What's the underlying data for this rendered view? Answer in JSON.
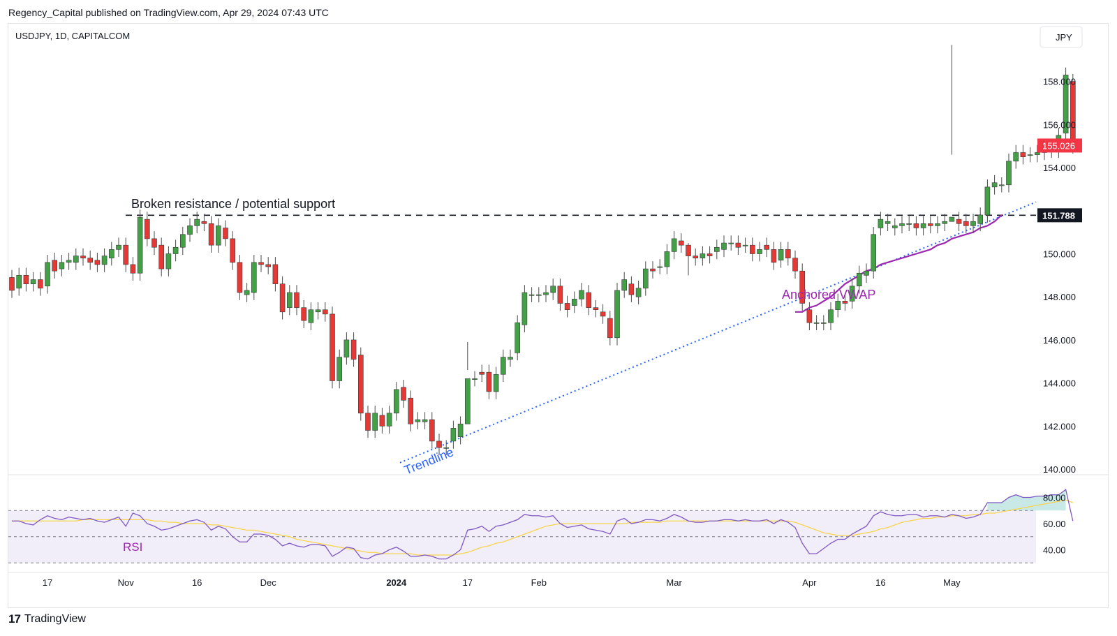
{
  "header": {
    "text": "Regency_Capital published on TradingView.com, Apr 29, 2024 07:43 UTC"
  },
  "footer": {
    "brand": "TradingView"
  },
  "chart_data": {
    "type": "candlestick",
    "symbol_label": "USDJPY, 1D, CAPITALCOM",
    "currency": "JPY",
    "price_axis": {
      "range": [
        140,
        159.5
      ],
      "ticks": [
        "158.000",
        "156.000",
        "154.000",
        "152.000",
        "150.000",
        "148.000",
        "146.000",
        "144.000",
        "142.000",
        "140.000"
      ]
    },
    "time_axis": {
      "labels": [
        {
          "idx": 5,
          "text": "17"
        },
        {
          "idx": 16,
          "text": "Nov"
        },
        {
          "idx": 26,
          "text": "16"
        },
        {
          "idx": 36,
          "text": "Dec"
        },
        {
          "idx": 54,
          "text": "2024"
        },
        {
          "idx": 64,
          "text": "17"
        },
        {
          "idx": 74,
          "text": "Feb"
        },
        {
          "idx": 93,
          "text": "Mar"
        },
        {
          "idx": 112,
          "text": "Apr"
        },
        {
          "idx": 122,
          "text": "16"
        },
        {
          "idx": 132,
          "text": "May"
        }
      ]
    },
    "last_price": {
      "label": "155.026",
      "value": 155.026,
      "color": "#f23645"
    },
    "level_line": {
      "label": "151.788",
      "value": 151.788
    },
    "annotations": {
      "resistance": "Broken resistance / potential support",
      "trendline": "Trendline",
      "vwap": "Anchored VWAP",
      "rsi": "RSI"
    },
    "colors": {
      "up": "#43a047",
      "down": "#e53935",
      "vwap": "#9c27b0",
      "trendline": "#2962ff",
      "rsi": "#7e57c2",
      "rsi_ma": "#f7d44c"
    },
    "candles": [
      [
        148.9,
        148.3
      ],
      [
        148.4,
        149.0
      ],
      [
        149.0,
        148.6
      ],
      [
        148.6,
        148.8
      ],
      [
        148.8,
        148.4
      ],
      [
        148.5,
        149.6
      ],
      [
        149.7,
        149.2
      ],
      [
        149.3,
        149.6
      ],
      [
        149.6,
        149.7
      ],
      [
        149.6,
        149.9
      ],
      [
        149.9,
        149.8
      ],
      [
        149.8,
        149.6
      ],
      [
        149.7,
        149.5
      ],
      [
        149.5,
        149.9
      ],
      [
        149.8,
        150.2
      ],
      [
        150.2,
        150.4
      ],
      [
        150.4,
        149.5
      ],
      [
        149.5,
        149.1
      ],
      [
        149.1,
        151.7
      ],
      [
        151.6,
        150.7
      ],
      [
        150.7,
        150.3
      ],
      [
        150.4,
        149.3
      ],
      [
        149.3,
        150.0
      ],
      [
        150.0,
        150.3
      ],
      [
        150.3,
        150.9
      ],
      [
        150.9,
        151.3
      ],
      [
        151.3,
        151.6
      ],
      [
        151.5,
        151.4
      ],
      [
        151.4,
        150.4
      ],
      [
        150.4,
        151.3
      ],
      [
        151.2,
        150.7
      ],
      [
        150.7,
        149.6
      ],
      [
        149.6,
        148.2
      ],
      [
        148.1,
        148.3
      ],
      [
        148.2,
        149.6
      ],
      [
        149.6,
        149.5
      ],
      [
        149.5,
        149.4
      ],
      [
        149.5,
        148.6
      ],
      [
        148.6,
        147.3
      ],
      [
        147.5,
        148.2
      ],
      [
        148.2,
        147.5
      ],
      [
        147.5,
        146.9
      ],
      [
        146.8,
        147.4
      ],
      [
        147.3,
        147.4
      ],
      [
        147.4,
        147.2
      ],
      [
        147.2,
        144.1
      ],
      [
        144.1,
        145.2
      ],
      [
        145.2,
        146.0
      ],
      [
        146.0,
        145.1
      ],
      [
        145.3,
        142.6
      ],
      [
        142.6,
        141.8
      ],
      [
        141.8,
        142.6
      ],
      [
        142.5,
        142.0
      ],
      [
        142.0,
        142.6
      ],
      [
        142.6,
        143.7
      ],
      [
        143.8,
        143.2
      ],
      [
        143.3,
        142.1
      ],
      [
        142.2,
        142.3
      ],
      [
        142.2,
        142.3
      ],
      [
        142.3,
        141.3
      ],
      [
        141.3,
        141.0
      ],
      [
        141.0,
        141.0
      ],
      [
        141.3,
        141.9
      ],
      [
        141.5,
        142.1
      ],
      [
        142.1,
        144.2
      ],
      [
        144.2,
        144.2
      ],
      [
        144.5,
        144.4
      ],
      [
        144.5,
        143.6
      ],
      [
        143.6,
        144.4
      ],
      [
        144.4,
        145.2
      ],
      [
        145.1,
        145.2
      ],
      [
        145.4,
        146.8
      ],
      [
        146.7,
        148.2
      ],
      [
        148.1,
        148.1
      ],
      [
        148.1,
        148.1
      ],
      [
        148.1,
        148.2
      ],
      [
        148.2,
        148.5
      ],
      [
        148.5,
        147.7
      ],
      [
        147.7,
        147.4
      ],
      [
        147.6,
        147.9
      ],
      [
        147.9,
        148.3
      ],
      [
        148.2,
        147.5
      ],
      [
        147.5,
        147.4
      ],
      [
        147.3,
        147.1
      ],
      [
        147.0,
        146.1
      ],
      [
        146.1,
        148.3
      ],
      [
        148.3,
        148.8
      ],
      [
        148.6,
        148.1
      ],
      [
        148.0,
        148.4
      ],
      [
        148.4,
        149.3
      ],
      [
        149.3,
        149.2
      ],
      [
        149.4,
        149.4
      ],
      [
        149.4,
        150.1
      ],
      [
        150.1,
        150.7
      ],
      [
        150.6,
        150.4
      ],
      [
        150.4,
        149.9
      ],
      [
        149.9,
        149.8
      ],
      [
        149.8,
        150.0
      ],
      [
        150.0,
        149.9
      ],
      [
        150.1,
        150.3
      ],
      [
        150.2,
        150.5
      ],
      [
        150.5,
        150.5
      ],
      [
        150.5,
        150.3
      ],
      [
        150.4,
        150.4
      ],
      [
        150.4,
        150.0
      ],
      [
        150.0,
        150.2
      ],
      [
        150.4,
        150.2
      ],
      [
        150.2,
        149.6
      ],
      [
        149.7,
        150.2
      ],
      [
        150.2,
        149.8
      ],
      [
        149.8,
        149.2
      ],
      [
        149.2,
        147.7
      ],
      [
        147.4,
        146.8
      ],
      [
        146.8,
        146.8
      ],
      [
        146.8,
        146.8
      ],
      [
        146.8,
        147.4
      ],
      [
        147.4,
        147.8
      ],
      [
        147.8,
        147.7
      ],
      [
        147.8,
        148.5
      ],
      [
        148.5,
        149.1
      ],
      [
        149.0,
        149.2
      ],
      [
        149.2,
        150.9
      ],
      [
        151.2,
        151.6
      ],
      [
        151.4,
        151.5
      ],
      [
        151.2,
        151.3
      ],
      [
        151.3,
        151.4
      ],
      [
        151.4,
        151.4
      ],
      [
        151.4,
        151.2
      ],
      [
        151.2,
        151.4
      ],
      [
        151.4,
        151.3
      ],
      [
        151.3,
        151.4
      ],
      [
        151.4,
        151.5
      ],
      [
        151.5,
        151.7
      ],
      [
        151.6,
        151.4
      ],
      [
        151.5,
        151.3
      ],
      [
        151.3,
        151.5
      ],
      [
        151.4,
        151.8
      ],
      [
        151.8,
        153.1
      ],
      [
        153.1,
        153.3
      ],
      [
        153.2,
        153.2
      ],
      [
        153.2,
        154.3
      ],
      [
        154.3,
        154.7
      ],
      [
        154.7,
        154.5
      ],
      [
        154.6,
        154.6
      ],
      [
        154.6,
        154.7
      ],
      [
        154.7,
        154.8
      ],
      [
        154.8,
        154.9
      ],
      [
        154.8,
        155.5
      ],
      [
        155.6,
        158.3
      ],
      [
        158.0,
        155.0
      ]
    ],
    "wicks": [
      [
        64,
        144.6,
        145.9
      ],
      [
        95,
        149.0,
        150.5
      ],
      [
        132,
        154.6,
        159.7
      ]
    ],
    "vwap": [
      [
        110,
        147.3
      ],
      [
        111,
        147.3
      ],
      [
        112,
        147.5
      ],
      [
        113,
        147.6
      ],
      [
        114,
        147.8
      ],
      [
        115,
        148.0
      ],
      [
        116,
        148.3
      ],
      [
        117,
        148.6
      ],
      [
        118,
        148.8
      ],
      [
        119,
        149.0
      ],
      [
        120,
        149.2
      ],
      [
        121,
        149.3
      ],
      [
        122,
        149.5
      ],
      [
        123,
        149.6
      ],
      [
        124,
        149.7
      ],
      [
        125,
        149.8
      ],
      [
        126,
        149.9
      ],
      [
        127,
        150.0
      ],
      [
        128,
        150.1
      ],
      [
        129,
        150.2
      ],
      [
        130,
        150.4
      ],
      [
        131,
        150.5
      ],
      [
        132,
        150.7
      ],
      [
        133,
        150.8
      ],
      [
        134,
        150.9
      ],
      [
        135,
        151.0
      ],
      [
        136,
        151.2
      ],
      [
        137,
        151.3
      ],
      [
        138,
        151.5
      ],
      [
        139,
        151.8
      ]
    ],
    "rsi_panel": {
      "ticks": [
        "80.00",
        "60.00",
        "40.00"
      ],
      "range": [
        28,
        92
      ],
      "band": [
        30,
        70
      ],
      "rsi": [
        62,
        62,
        60,
        59,
        63,
        66,
        64,
        63,
        65,
        64,
        63,
        64,
        62,
        61,
        63,
        65,
        58,
        68,
        66,
        60,
        58,
        55,
        56,
        58,
        60,
        62,
        63,
        61,
        55,
        58,
        56,
        50,
        46,
        46,
        52,
        52,
        51,
        48,
        43,
        45,
        43,
        42,
        44,
        44,
        43,
        35,
        38,
        42,
        41,
        34,
        33,
        36,
        37,
        40,
        42,
        39,
        35,
        35,
        36,
        35,
        33,
        33,
        36,
        40,
        55,
        56,
        58,
        54,
        58,
        59,
        61,
        63,
        67,
        66,
        66,
        65,
        66,
        60,
        57,
        58,
        59,
        56,
        55,
        54,
        52,
        62,
        64,
        60,
        61,
        63,
        63,
        62,
        64,
        67,
        65,
        62,
        61,
        61,
        62,
        62,
        63,
        63,
        62,
        63,
        62,
        62,
        63,
        60,
        63,
        61,
        57,
        45,
        37,
        37,
        41,
        45,
        48,
        48,
        52,
        55,
        58,
        66,
        69,
        67,
        66,
        66,
        67,
        67,
        65,
        66,
        66,
        65,
        67,
        66,
        64,
        65,
        67,
        76,
        76,
        76,
        80,
        82,
        80,
        80,
        81,
        81,
        82,
        82,
        86,
        62
      ],
      "rsi_ma": [
        62,
        62,
        62,
        62,
        62,
        62,
        62,
        62,
        62,
        62,
        63,
        63,
        63,
        63,
        63,
        63,
        63,
        63,
        63,
        63,
        62,
        62,
        61,
        61,
        60,
        60,
        60,
        60,
        59,
        59,
        58,
        57,
        56,
        55,
        55,
        54,
        53,
        52,
        51,
        50,
        48,
        47,
        46,
        45,
        44,
        43,
        42,
        41,
        40,
        39,
        38,
        38,
        37,
        37,
        37,
        37,
        37,
        36,
        36,
        36,
        36,
        36,
        36,
        37,
        38,
        40,
        42,
        43,
        45,
        46,
        48,
        50,
        52,
        54,
        56,
        58,
        59,
        60,
        60,
        60,
        60,
        60,
        60,
        60,
        60,
        60,
        60,
        61,
        61,
        61,
        61,
        61,
        62,
        62,
        62,
        62,
        62,
        62,
        62,
        62,
        62,
        62,
        62,
        62,
        62,
        62,
        62,
        62,
        62,
        62,
        61,
        59,
        57,
        55,
        53,
        52,
        51,
        51,
        51,
        52,
        53,
        54,
        56,
        57,
        59,
        61,
        62,
        63,
        64,
        64,
        65,
        65,
        66,
        66,
        66,
        67,
        67,
        68,
        68,
        69,
        70,
        71,
        72,
        73,
        74,
        75,
        76,
        77,
        78,
        76
      ]
    }
  }
}
